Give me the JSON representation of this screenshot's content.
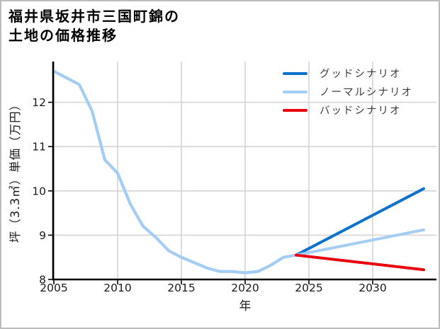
{
  "title": {
    "line1": "福井県坂井市三国町錦の",
    "line2": "土地の価格推移"
  },
  "legend": {
    "items": [
      {
        "label": "グッドシナリオ",
        "color": "#0d72c9"
      },
      {
        "label": "ノーマルシナリオ",
        "color": "#a4cdf4"
      },
      {
        "label": "バッドシナリオ",
        "color": "#e8000b"
      }
    ]
  },
  "chart_data": {
    "type": "line",
    "title": "福井県坂井市三国町錦の土地の価格推移",
    "xlabel": "年",
    "ylabel": "坪（3.3㎡）単価（万円）",
    "xlim": [
      2005,
      2035
    ],
    "ylim": [
      8,
      12.92
    ],
    "xticks": [
      2005,
      2010,
      2015,
      2020,
      2025,
      2030
    ],
    "yticks": [
      8,
      9,
      10,
      11,
      12
    ],
    "grid": true,
    "legend_position": "upper right",
    "series": [
      {
        "name": "historical",
        "show_in_legend": false,
        "color": "#a4cdf4",
        "width": 4.2,
        "x": [
          2005,
          2006,
          2007,
          2008,
          2009,
          2010,
          2011,
          2012,
          2013,
          2014,
          2015,
          2016,
          2017,
          2018,
          2019,
          2020,
          2021,
          2022,
          2023,
          2024
        ],
        "values": [
          12.7,
          12.55,
          12.4,
          11.8,
          10.7,
          10.4,
          9.7,
          9.2,
          8.95,
          8.65,
          8.5,
          8.38,
          8.26,
          8.18,
          8.18,
          8.15,
          8.18,
          8.32,
          8.5,
          8.55
        ]
      },
      {
        "name": "グッドシナリオ",
        "show_in_legend": true,
        "color": "#0d72c9",
        "width": 4,
        "x": [
          2024,
          2034
        ],
        "values": [
          8.55,
          10.05
        ]
      },
      {
        "name": "ノーマルシナリオ",
        "show_in_legend": true,
        "color": "#a4cdf4",
        "width": 4,
        "x": [
          2024,
          2034
        ],
        "values": [
          8.55,
          9.12
        ]
      },
      {
        "name": "バッドシナリオ",
        "show_in_legend": true,
        "color": "#e8000b",
        "width": 4,
        "x": [
          2024,
          2034
        ],
        "values": [
          8.55,
          8.22
        ]
      }
    ],
    "colors": {
      "grid": "#d8d8d8",
      "spine": "#000000",
      "tick_label": "#1a1a1a",
      "background": "#ffffff"
    }
  }
}
